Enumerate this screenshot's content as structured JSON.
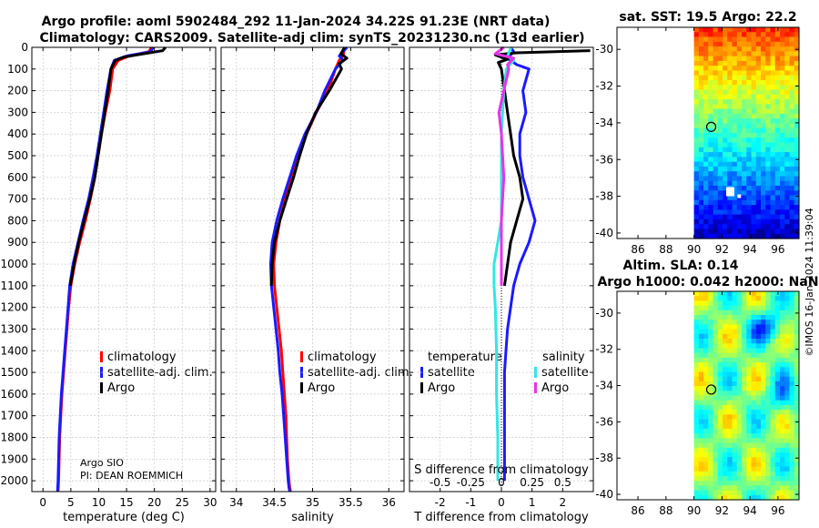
{
  "title_line1": "Argo profile: aoml 5902484_292 11-Jan-2024 34.22S 91.23E (NRT data)",
  "title_line2": "Climatology: CARS2009. Satellite-adj clim: synTS_20231230.nc (13d earlier)",
  "credit": "©IMOS 16-Jan-2024 11:39:04",
  "colors": {
    "climatology": "#ff0000",
    "satellite": "#1a1aff",
    "argo": "#000000",
    "sat_salinity": "#33e6e6",
    "argo_salinity": "#e633e6"
  },
  "chart_data": [
    {
      "type": "line",
      "id": "temperature",
      "xlabel": "temperature (deg C)",
      "xlim": [
        -2,
        31
      ],
      "xticks": [
        0,
        5,
        10,
        15,
        20,
        25,
        30
      ],
      "xtick_labels": [
        "0",
        "5",
        "10",
        "15",
        "20",
        "25",
        "30"
      ],
      "ylim": [
        0,
        2050
      ],
      "yticks": [
        0,
        100,
        200,
        300,
        400,
        500,
        600,
        700,
        800,
        900,
        1000,
        1100,
        1200,
        1300,
        1400,
        1500,
        1600,
        1700,
        1800,
        1900,
        2000
      ],
      "ytick_labels": [
        "0",
        "100",
        "200",
        "300",
        "400",
        "500",
        "600",
        "700",
        "800",
        "900",
        "1000",
        "1100",
        "1200",
        "1300",
        "1400",
        "1500",
        "1600",
        "1700",
        "1800",
        "1900",
        "2000"
      ],
      "legend": [
        "climatology",
        "satellite-adj. clim.",
        "Argo"
      ],
      "annotation": [
        "Argo SIO",
        "PI: DEAN ROEMMICH"
      ],
      "series": [
        {
          "name": "climatology",
          "color": "#ff0000",
          "x": [
            19.5,
            19.0,
            15.5,
            13.5,
            12.5,
            12.0,
            11.2,
            10.5,
            9.9,
            9.3,
            8.5,
            7.6,
            6.6,
            5.7,
            5.0,
            4.6,
            4.3,
            4.0,
            3.7,
            3.4,
            3.2,
            3.0,
            2.9,
            2.8,
            2.7
          ],
          "y": [
            0,
            20,
            40,
            60,
            100,
            200,
            300,
            400,
            500,
            600,
            700,
            800,
            900,
            1000,
            1100,
            1200,
            1300,
            1400,
            1500,
            1600,
            1700,
            1800,
            1900,
            2000,
            2050
          ]
        },
        {
          "name": "satellite-adj. clim.",
          "color": "#1a1aff",
          "x": [
            19.8,
            19.3,
            15.0,
            12.8,
            12.2,
            11.5,
            10.9,
            10.3,
            9.7,
            9.0,
            8.2,
            7.2,
            6.3,
            5.4,
            4.8,
            4.5,
            4.2,
            3.9,
            3.6,
            3.3,
            3.1,
            2.9,
            2.8,
            2.7,
            2.6
          ],
          "y": [
            0,
            20,
            40,
            60,
            100,
            200,
            300,
            400,
            500,
            600,
            700,
            800,
            900,
            1000,
            1100,
            1200,
            1300,
            1400,
            1500,
            1600,
            1700,
            1800,
            1900,
            2000,
            2050
          ]
        },
        {
          "name": "Argo",
          "color": "#000000",
          "x": [
            22.0,
            21.5,
            18.0,
            14.5,
            13.0,
            12.2,
            11.7,
            11.1,
            10.5,
            9.9,
            9.3,
            8.4,
            7.4,
            6.4,
            5.6,
            4.9
          ],
          "y": [
            0,
            15,
            30,
            45,
            60,
            100,
            200,
            300,
            400,
            500,
            600,
            700,
            800,
            900,
            1000,
            1100
          ]
        }
      ]
    },
    {
      "type": "line",
      "id": "salinity",
      "xlabel": "salinity",
      "xlim": [
        33.8,
        36.2
      ],
      "xticks": [
        34,
        34.5,
        35,
        35.5,
        36
      ],
      "xtick_labels": [
        "34",
        "34.5",
        "35",
        "35.5",
        "36"
      ],
      "ylim": [
        0,
        2050
      ],
      "legend": [
        "climatology",
        "satellite-adj. clim.",
        "Argo"
      ],
      "series": [
        {
          "name": "climatology",
          "color": "#ff0000",
          "x": [
            35.42,
            35.4,
            35.35,
            35.3,
            35.2,
            35.05,
            34.92,
            34.82,
            34.73,
            34.64,
            34.57,
            34.52,
            34.49,
            34.5,
            34.53,
            34.56,
            34.59,
            34.61,
            34.63,
            34.65,
            34.66,
            34.67,
            34.69,
            34.7,
            34.71
          ],
          "y": [
            0,
            40,
            60,
            100,
            200,
            300,
            400,
            500,
            600,
            700,
            800,
            900,
            1000,
            1100,
            1200,
            1300,
            1400,
            1500,
            1600,
            1700,
            1800,
            1900,
            2000,
            2030,
            2050
          ]
        },
        {
          "name": "satellite-adj. clim.",
          "color": "#1a1aff",
          "x": [
            35.45,
            35.35,
            35.4,
            35.3,
            35.16,
            35.05,
            34.9,
            34.79,
            34.7,
            34.61,
            34.53,
            34.47,
            34.45,
            34.46,
            34.49,
            34.52,
            34.55,
            34.57,
            34.6,
            34.62,
            34.64,
            34.66,
            34.68,
            34.69,
            34.7
          ],
          "y": [
            0,
            40,
            60,
            100,
            200,
            300,
            400,
            500,
            600,
            700,
            800,
            900,
            1000,
            1100,
            1200,
            1300,
            1400,
            1500,
            1600,
            1700,
            1800,
            1900,
            2000,
            2030,
            2050
          ]
        },
        {
          "name": "Argo",
          "color": "#000000",
          "x": [
            35.42,
            35.37,
            35.45,
            35.35,
            35.38,
            35.22,
            35.04,
            34.92,
            34.83,
            34.75,
            34.66,
            34.57,
            34.5,
            34.47,
            34.46
          ],
          "y": [
            0,
            30,
            50,
            75,
            100,
            200,
            300,
            400,
            500,
            600,
            700,
            800,
            900,
            1000,
            1100
          ]
        }
      ]
    },
    {
      "type": "line",
      "id": "difference",
      "xlabel": "T difference from climatology",
      "xlabel2": "S difference from climatology",
      "xlim": [
        -3,
        3
      ],
      "xticks": [
        -2,
        -1,
        0,
        1,
        2
      ],
      "xtick_labels": [
        "-2",
        "-1",
        "0",
        "1",
        "2"
      ],
      "sticks": [
        -0.5,
        -0.25,
        0,
        0.25,
        0.5
      ],
      "stick_labels": [
        "-0.5",
        "-0.25",
        "0",
        "0.25",
        "0.5"
      ],
      "slim": [
        -0.75,
        0.75
      ],
      "ylim": [
        0,
        2050
      ],
      "legend_temperature_title": "temperature",
      "legend_salinity_title": "salinity",
      "legend_temperature": [
        "satellite",
        "Argo"
      ],
      "legend_salinity": [
        "satellite",
        "Argo"
      ],
      "series": [
        {
          "name": "T satellite",
          "color": "#1a1aff",
          "axis": "T",
          "x": [
            0.3,
            0.4,
            0.2,
            0.5,
            0.9,
            0.7,
            0.8,
            0.6,
            0.6,
            0.7,
            0.9,
            1.1,
            0.9,
            0.6,
            0.4,
            0.3,
            0.2,
            0.15,
            0.1,
            0.1,
            0.1,
            0.1,
            0.1
          ],
          "y": [
            0,
            20,
            50,
            80,
            100,
            200,
            300,
            400,
            500,
            600,
            700,
            800,
            900,
            1000,
            1100,
            1200,
            1300,
            1400,
            1500,
            1600,
            1700,
            1800,
            2000
          ]
        },
        {
          "name": "T Argo",
          "color": "#000000",
          "axis": "T",
          "x": [
            2.9,
            0.5,
            -0.2,
            0.2,
            -0.1,
            0.0,
            0.1,
            0.2,
            0.3,
            0.4,
            0.6,
            0.7,
            0.5,
            0.3,
            0.1
          ],
          "y": [
            15,
            25,
            35,
            55,
            70,
            100,
            200,
            300,
            400,
            500,
            600,
            700,
            800,
            900,
            1100
          ]
        },
        {
          "name": "S satellite",
          "color": "#33e6e6",
          "axis": "S",
          "x": [
            0.08,
            0.05,
            0.1,
            0.04,
            0.02,
            0.01,
            0.0,
            0.0,
            0.0,
            0.0,
            0.0,
            -0.03,
            -0.06,
            -0.06,
            -0.05,
            -0.04,
            -0.04,
            -0.03,
            -0.03
          ],
          "y": [
            0,
            40,
            60,
            100,
            200,
            300,
            400,
            500,
            600,
            700,
            800,
            900,
            1000,
            1100,
            1200,
            1400,
            1600,
            1800,
            2000
          ]
        },
        {
          "name": "S Argo",
          "color": "#e633e6",
          "axis": "S",
          "x": [
            0.02,
            -0.05,
            0.1,
            0.05,
            0.06,
            0.02,
            -0.02,
            0.0,
            0.01,
            0.02,
            0.01,
            0.0,
            0.0,
            0.0
          ],
          "y": [
            0,
            30,
            50,
            80,
            100,
            200,
            300,
            400,
            500,
            600,
            700,
            800,
            900,
            1100
          ]
        }
      ]
    },
    {
      "type": "heatmap",
      "id": "sst_map",
      "title": "sat. SST: 19.5 Argo: 22.2",
      "xlim": [
        84.5,
        97.5
      ],
      "ylim": [
        -40.3,
        -28.8
      ],
      "xticks": [
        86,
        88,
        90,
        92,
        94,
        96
      ],
      "xtick_labels": [
        "86",
        "88",
        "90",
        "92",
        "94",
        "96"
      ],
      "yticks": [
        -30,
        -32,
        -34,
        -36,
        -38,
        -40
      ],
      "ytick_labels": [
        "-30",
        "-32",
        "-34",
        "-36",
        "-38",
        "-40"
      ],
      "data_lon_range": [
        90,
        97.5
      ],
      "argo_position": [
        91.23,
        -34.22
      ]
    },
    {
      "type": "heatmap",
      "id": "sla_map",
      "title_line1": "Altim. SLA: 0.14",
      "title_line2": "Argo h1000: 0.042 h2000: NaN",
      "xlim": [
        84.5,
        97.5
      ],
      "ylim": [
        -40.3,
        -28.8
      ],
      "xticks": [
        86,
        88,
        90,
        92,
        94,
        96
      ],
      "xtick_labels": [
        "86",
        "88",
        "90",
        "92",
        "94",
        "96"
      ],
      "yticks": [
        -30,
        -32,
        -34,
        -36,
        -38,
        -40
      ],
      "ytick_labels": [
        "-30",
        "-32",
        "-34",
        "-36",
        "-38",
        "-40"
      ],
      "data_lon_range": [
        90,
        97.5
      ],
      "argo_position": [
        91.23,
        -34.22
      ]
    }
  ]
}
